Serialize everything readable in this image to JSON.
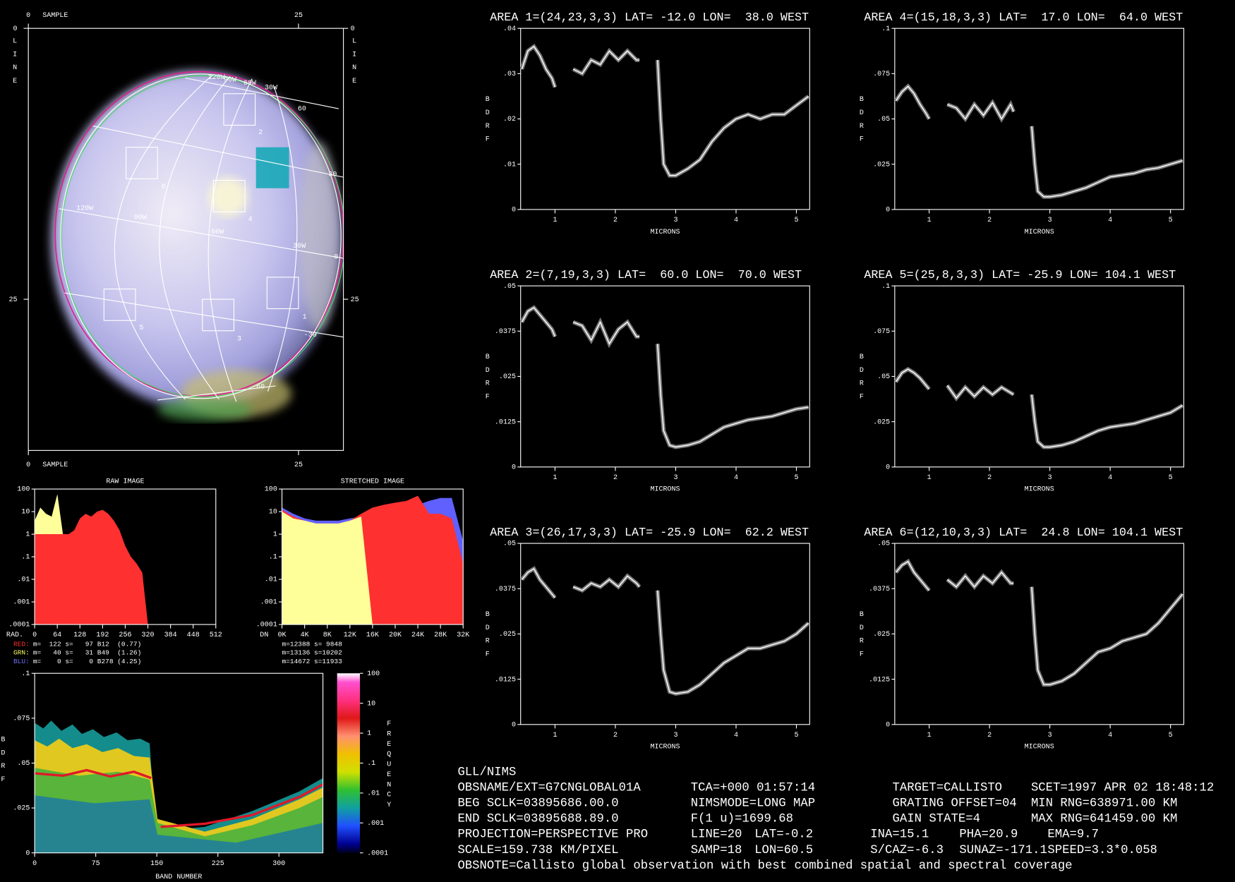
{
  "chart_data": [
    {
      "type": "line",
      "title": "AREA 1=(24,23,3,3) LAT= -12.0 LON=  38.0 WEST",
      "xlabel": "MICRONS",
      "ylabel": "BDRF",
      "color": "#ffffff",
      "x": [
        0.45,
        0.55,
        0.65,
        0.75,
        0.85,
        0.95,
        1.0,
        1.15,
        1.3,
        1.45,
        1.6,
        1.75,
        1.9,
        2.05,
        2.2,
        2.35,
        2.4,
        2.55,
        2.7,
        2.75,
        2.8,
        2.9,
        3.0,
        3.2,
        3.4,
        3.6,
        3.8,
        4.0,
        4.2,
        4.4,
        4.6,
        4.8,
        5.0,
        5.2
      ],
      "values": [
        0.031,
        0.035,
        0.036,
        0.034,
        0.031,
        0.029,
        0.027,
        null,
        0.031,
        0.03,
        0.033,
        0.032,
        0.035,
        0.033,
        0.035,
        0.033,
        0.033,
        null,
        0.033,
        0.02,
        0.01,
        0.0075,
        0.0075,
        0.009,
        0.011,
        0.015,
        0.018,
        0.02,
        0.021,
        0.02,
        0.021,
        0.021,
        0.023,
        0.025
      ],
      "xlim": [
        0.43,
        5.22
      ],
      "xticks": [
        1,
        2,
        3,
        4,
        5
      ],
      "ylim": [
        0,
        0.04
      ],
      "yticks": [
        0,
        {
          "value": 0.01,
          "label": ".01"
        },
        {
          "value": 0.02,
          "label": ".02"
        },
        {
          "value": 0.03,
          "label": ".03"
        },
        {
          "value": 0.04,
          "label": ".04"
        }
      ]
    },
    {
      "type": "line",
      "title": "AREA 4=(15,18,3,3) LAT=  17.0 LON=  64.0 WEST",
      "xlabel": "MICRONS",
      "ylabel": "BDRF",
      "color": "#ffffff",
      "x": [
        0.45,
        0.55,
        0.65,
        0.75,
        0.85,
        0.95,
        1.0,
        1.15,
        1.3,
        1.45,
        1.6,
        1.75,
        1.9,
        2.05,
        2.2,
        2.35,
        2.4,
        2.55,
        2.7,
        2.75,
        2.8,
        2.9,
        3.0,
        3.2,
        3.4,
        3.6,
        3.8,
        4.0,
        4.2,
        4.4,
        4.6,
        4.8,
        5.0,
        5.2
      ],
      "values": [
        0.06,
        0.065,
        0.068,
        0.064,
        0.058,
        0.053,
        0.05,
        null,
        0.058,
        0.056,
        0.05,
        0.058,
        0.052,
        0.059,
        0.05,
        0.058,
        0.054,
        null,
        0.046,
        0.025,
        0.01,
        0.007,
        0.007,
        0.008,
        0.01,
        0.012,
        0.015,
        0.018,
        0.019,
        0.02,
        0.022,
        0.023,
        0.025,
        0.027
      ],
      "xlim": [
        0.43,
        5.22
      ],
      "xticks": [
        1,
        2,
        3,
        4,
        5
      ],
      "ylim": [
        0,
        0.1
      ],
      "yticks": [
        0,
        {
          "value": 0.025,
          "label": ".025"
        },
        {
          "value": 0.05,
          "label": ".05"
        },
        {
          "value": 0.075,
          "label": ".075"
        },
        {
          "value": 0.1,
          "label": ".1"
        }
      ]
    },
    {
      "type": "line",
      "title": "AREA 2=(7,19,3,3) LAT=  60.0 LON=  70.0 WEST",
      "xlabel": "MICRONS",
      "ylabel": "BDRF",
      "color": "#ffffff",
      "x": [
        0.45,
        0.55,
        0.65,
        0.75,
        0.85,
        0.95,
        1.0,
        1.15,
        1.3,
        1.45,
        1.6,
        1.75,
        1.9,
        2.05,
        2.2,
        2.35,
        2.4,
        2.55,
        2.7,
        2.75,
        2.8,
        2.9,
        3.0,
        3.2,
        3.4,
        3.6,
        3.8,
        4.0,
        4.2,
        4.4,
        4.6,
        4.8,
        5.0,
        5.2
      ],
      "values": [
        0.04,
        0.043,
        0.044,
        0.042,
        0.04,
        0.038,
        0.036,
        null,
        0.04,
        0.039,
        0.035,
        0.04,
        0.034,
        0.038,
        0.04,
        0.036,
        0.036,
        null,
        0.034,
        0.02,
        0.01,
        0.006,
        0.0055,
        0.006,
        0.007,
        0.009,
        0.011,
        0.012,
        0.013,
        0.0135,
        0.014,
        0.015,
        0.016,
        0.0165
      ],
      "xlim": [
        0.43,
        5.22
      ],
      "xticks": [
        1,
        2,
        3,
        4,
        5
      ],
      "ylim": [
        0,
        0.05
      ],
      "yticks": [
        0,
        {
          "value": 0.0125,
          "label": ".0125"
        },
        {
          "value": 0.025,
          "label": ".025"
        },
        {
          "value": 0.0375,
          "label": ".0375"
        },
        {
          "value": 0.05,
          "label": ".05"
        }
      ]
    },
    {
      "type": "line",
      "title": "AREA 5=(25,8,3,3) LAT= -25.9 LON= 104.1 WEST",
      "xlabel": "MICRONS",
      "ylabel": "BDRF",
      "color": "#ffffff",
      "x": [
        0.45,
        0.55,
        0.65,
        0.75,
        0.85,
        0.95,
        1.0,
        1.15,
        1.3,
        1.45,
        1.6,
        1.75,
        1.9,
        2.05,
        2.2,
        2.35,
        2.4,
        2.55,
        2.7,
        2.75,
        2.8,
        2.9,
        3.0,
        3.2,
        3.4,
        3.6,
        3.8,
        4.0,
        4.2,
        4.4,
        4.6,
        4.8,
        5.0,
        5.2
      ],
      "values": [
        0.047,
        0.052,
        0.054,
        0.052,
        0.049,
        0.045,
        0.043,
        null,
        0.045,
        0.038,
        0.044,
        0.039,
        0.044,
        0.04,
        0.044,
        0.041,
        0.04,
        null,
        0.04,
        0.025,
        0.014,
        0.011,
        0.011,
        0.012,
        0.014,
        0.017,
        0.02,
        0.022,
        0.023,
        0.024,
        0.026,
        0.028,
        0.03,
        0.034
      ],
      "xlim": [
        0.43,
        5.22
      ],
      "xticks": [
        1,
        2,
        3,
        4,
        5
      ],
      "ylim": [
        0,
        0.1
      ],
      "yticks": [
        0,
        {
          "value": 0.025,
          "label": ".025"
        },
        {
          "value": 0.05,
          "label": ".05"
        },
        {
          "value": 0.075,
          "label": ".075"
        },
        {
          "value": 0.1,
          "label": ".1"
        }
      ]
    },
    {
      "type": "line",
      "title": "AREA 3=(26,17,3,3) LAT= -25.9 LON=  62.2 WEST",
      "xlabel": "MICRONS",
      "ylabel": "BDRF",
      "color": "#ffffff",
      "x": [
        0.45,
        0.55,
        0.65,
        0.75,
        0.85,
        0.95,
        1.0,
        1.15,
        1.3,
        1.45,
        1.6,
        1.75,
        1.9,
        2.05,
        2.2,
        2.35,
        2.4,
        2.55,
        2.7,
        2.75,
        2.8,
        2.9,
        3.0,
        3.2,
        3.4,
        3.6,
        3.8,
        4.0,
        4.2,
        4.4,
        4.6,
        4.8,
        5.0,
        5.2
      ],
      "values": [
        0.04,
        0.042,
        0.043,
        0.04,
        0.038,
        0.036,
        0.035,
        null,
        0.038,
        0.037,
        0.039,
        0.038,
        0.04,
        0.038,
        0.041,
        0.039,
        0.038,
        null,
        0.037,
        0.025,
        0.015,
        0.009,
        0.0085,
        0.009,
        0.011,
        0.014,
        0.017,
        0.019,
        0.021,
        0.021,
        0.022,
        0.023,
        0.025,
        0.028
      ],
      "xlim": [
        0.43,
        5.22
      ],
      "xticks": [
        1,
        2,
        3,
        4,
        5
      ],
      "ylim": [
        0,
        0.05
      ],
      "yticks": [
        0,
        {
          "value": 0.0125,
          "label": ".0125"
        },
        {
          "value": 0.025,
          "label": ".025"
        },
        {
          "value": 0.0375,
          "label": ".0375"
        },
        {
          "value": 0.05,
          "label": ".05"
        }
      ]
    },
    {
      "type": "line",
      "title": "AREA 6=(12,10,3,3) LAT=  24.8 LON= 104.1 WEST",
      "xlabel": "MICRONS",
      "ylabel": "BDRF",
      "color": "#ffffff",
      "x": [
        0.45,
        0.55,
        0.65,
        0.75,
        0.85,
        0.95,
        1.0,
        1.15,
        1.3,
        1.45,
        1.6,
        1.75,
        1.9,
        2.05,
        2.2,
        2.35,
        2.4,
        2.55,
        2.7,
        2.75,
        2.8,
        2.9,
        3.0,
        3.2,
        3.4,
        3.6,
        3.8,
        4.0,
        4.2,
        4.4,
        4.6,
        4.8,
        5.0,
        5.2
      ],
      "values": [
        0.042,
        0.044,
        0.045,
        0.042,
        0.04,
        0.038,
        0.037,
        null,
        0.04,
        0.038,
        0.041,
        0.038,
        0.041,
        0.039,
        0.042,
        0.039,
        0.039,
        null,
        0.038,
        0.025,
        0.015,
        0.011,
        0.011,
        0.012,
        0.014,
        0.017,
        0.02,
        0.021,
        0.023,
        0.024,
        0.025,
        0.028,
        0.032,
        0.036
      ],
      "xlim": [
        0.43,
        5.22
      ],
      "xticks": [
        1,
        2,
        3,
        4,
        5
      ],
      "ylim": [
        0,
        0.05
      ],
      "yticks": [
        0,
        {
          "value": 0.0125,
          "label": ".0125"
        },
        {
          "value": 0.025,
          "label": ".025"
        },
        {
          "value": 0.0375,
          "label": ".0375"
        },
        {
          "value": 0.05,
          "label": ".05"
        }
      ]
    },
    {
      "type": "histogram",
      "title": "RAW IMAGE",
      "xlabel": "RAD.",
      "log": true,
      "x": [
        0,
        16,
        32,
        48,
        64,
        80,
        96,
        112,
        128,
        144,
        160,
        176,
        192,
        208,
        224,
        240,
        256,
        272,
        288,
        304,
        320
      ],
      "series": [
        {
          "color": "#ffff99",
          "values": [
            4,
            15,
            8,
            6,
            60,
            1,
            0.0001,
            0.0001,
            0.0001,
            0.0001,
            0.0001,
            0.0001,
            0.0001,
            0.0001,
            0.0001,
            0.0001,
            0.0001,
            0.0001,
            0.0001,
            0.0001,
            0.0001
          ]
        },
        {
          "color": "#ff3030",
          "values": [
            1,
            1,
            1,
            1,
            1,
            1,
            1,
            1.5,
            5,
            8,
            6,
            10,
            12,
            8,
            4,
            1.5,
            0.3,
            0.1,
            0.05,
            0.02,
            0.0001
          ]
        }
      ],
      "xlim": [
        0,
        512
      ],
      "xticks": [
        0,
        64,
        128,
        192,
        256,
        320,
        384,
        448,
        512
      ],
      "ylim": [
        0.0001,
        100
      ],
      "yticks": [
        100,
        10,
        1,
        {
          "value": 0.1,
          "label": ".1"
        },
        {
          "value": 0.01,
          "label": ".01"
        },
        {
          "value": 0.001,
          "label": ".001"
        },
        {
          "value": 0.0001,
          "label": ".0001"
        }
      ],
      "stats": [
        {
          "label": "RED:",
          "color": "#ff3030",
          "text": "m=  122 s=   97 B12  (0.77)"
        },
        {
          "label": "GRN:",
          "color": "#ffff60",
          "text": "m=   40 s=   31 B49  (1.26)"
        },
        {
          "label": "BLU:",
          "color": "#7070ff",
          "text": "m=    0 s=    0 B278 (4.25)"
        }
      ]
    },
    {
      "type": "histogram",
      "title": "STRETCHED IMAGE",
      "xlabel": "DN",
      "log": true,
      "x": [
        0,
        2048,
        4096,
        6144,
        8192,
        10240,
        12288,
        14336,
        16384,
        18432,
        20480,
        22528,
        24576,
        26624,
        28672,
        30720,
        32768
      ],
      "series": [
        {
          "color": "#6060ff",
          "values": [
            15,
            8,
            5,
            4,
            4,
            4,
            5,
            6,
            8,
            10,
            12,
            15,
            20,
            30,
            40,
            40,
            0.5
          ]
        },
        {
          "color": "#ff3030",
          "values": [
            12,
            6,
            4,
            3,
            3,
            3,
            4,
            8,
            15,
            20,
            25,
            30,
            50,
            8,
            8,
            5,
            0.05
          ]
        },
        {
          "color": "#ffff99",
          "values": [
            10,
            5,
            4,
            3,
            3,
            3,
            4,
            6,
            0.0001,
            0.0001,
            0.0001,
            0.0001,
            0.0001,
            0.0001,
            0.0001,
            0.0001,
            0.0001
          ]
        }
      ],
      "xlim": [
        0,
        32768
      ],
      "xticks": [
        {
          "value": 0,
          "label": "0K"
        },
        {
          "value": 4096,
          "label": "4K"
        },
        {
          "value": 8192,
          "label": "8K"
        },
        {
          "value": 12288,
          "label": "12K"
        },
        {
          "value": 16384,
          "label": "16K"
        },
        {
          "value": 20480,
          "label": "20K"
        },
        {
          "value": 24576,
          "label": "24K"
        },
        {
          "value": 28672,
          "label": "28K"
        },
        {
          "value": 32768,
          "label": "32K"
        }
      ],
      "ylim": [
        0.0001,
        100
      ],
      "yticks": [
        100,
        10,
        1,
        {
          "value": 0.1,
          "label": ".1"
        },
        {
          "value": 0.01,
          "label": ".01"
        },
        {
          "value": 0.001,
          "label": ".001"
        },
        {
          "value": 0.0001,
          "label": ".0001"
        }
      ],
      "stats": [
        {
          "text": "m=12388 s= 9848"
        },
        {
          "text": "m=13136 s=10202"
        },
        {
          "text": "m=14672 s=11933"
        }
      ]
    },
    {
      "type": "density",
      "xlabel": "BAND NUMBER",
      "ylabel": "BDRF",
      "clabel": "FREQUENCY",
      "xlim": [
        0,
        354
      ],
      "xticks": [
        0,
        75,
        150,
        225,
        300
      ],
      "ylim": [
        0,
        0.1
      ],
      "yticks": [
        0,
        {
          "value": 0.025,
          "label": ".025"
        },
        {
          "value": 0.05,
          "label": ".05"
        },
        {
          "value": 0.075,
          "label": ".075"
        },
        {
          "value": 0.1,
          "label": ".1"
        }
      ],
      "clim": [
        0.0001,
        100
      ],
      "cticks": [
        100,
        10,
        1,
        {
          "value": 0.1,
          "label": ".1"
        },
        {
          "value": 0.01,
          "label": ".01"
        },
        {
          "value": 0.001,
          "label": ".001"
        },
        {
          "value": 0.0001,
          "label": ".0001"
        }
      ]
    }
  ],
  "image": {
    "sample_label": "SAMPLE",
    "line_label": "LINE",
    "sample_ticks": [
      0,
      25
    ],
    "line_ticks": [
      0,
      25
    ],
    "labels": [
      "120W",
      "90W",
      "60W",
      "30W",
      "60",
      "2",
      "6",
      "30",
      "4",
      "120W",
      "90W",
      "60W",
      "30W",
      "0",
      "1",
      "5",
      "3",
      "-30",
      "-60"
    ]
  },
  "info": {
    "rows": [
      [
        "GLL/NIMS"
      ],
      [
        "OBSNAME/EXT=G7CNGLOBAL01A",
        "TCA=+000 01:57:14",
        "TARGET=CALLISTO",
        "SCET=1997 APR 02 18:48:12"
      ],
      [
        "BEG SCLK=03895686.00.0",
        "NIMSMODE=LONG MAP",
        "GRATING OFFSET=04",
        "MIN RNG=638971.00 KM"
      ],
      [
        "END SCLK=03895688.89.0",
        "F(1 u)=1699.68",
        "GAIN STATE=4",
        "MAX RNG=641459.00 KM"
      ],
      [
        "PROJECTION=PERSPECTIVE PRO",
        "LINE=20",
        "LAT=-0.2",
        "INA=15.1",
        "PHA=20.9",
        "EMA=9.7"
      ],
      [
        "SCALE=159.738 KM/PIXEL",
        "SAMP=18",
        "LON=60.5",
        "S/CAZ=-6.3",
        "SUNAZ=-171.1",
        "SPEED=3.3*0.058"
      ],
      [
        "OBSNOTE=Callisto global observation with best combined spatial and spectral coverage"
      ]
    ]
  }
}
